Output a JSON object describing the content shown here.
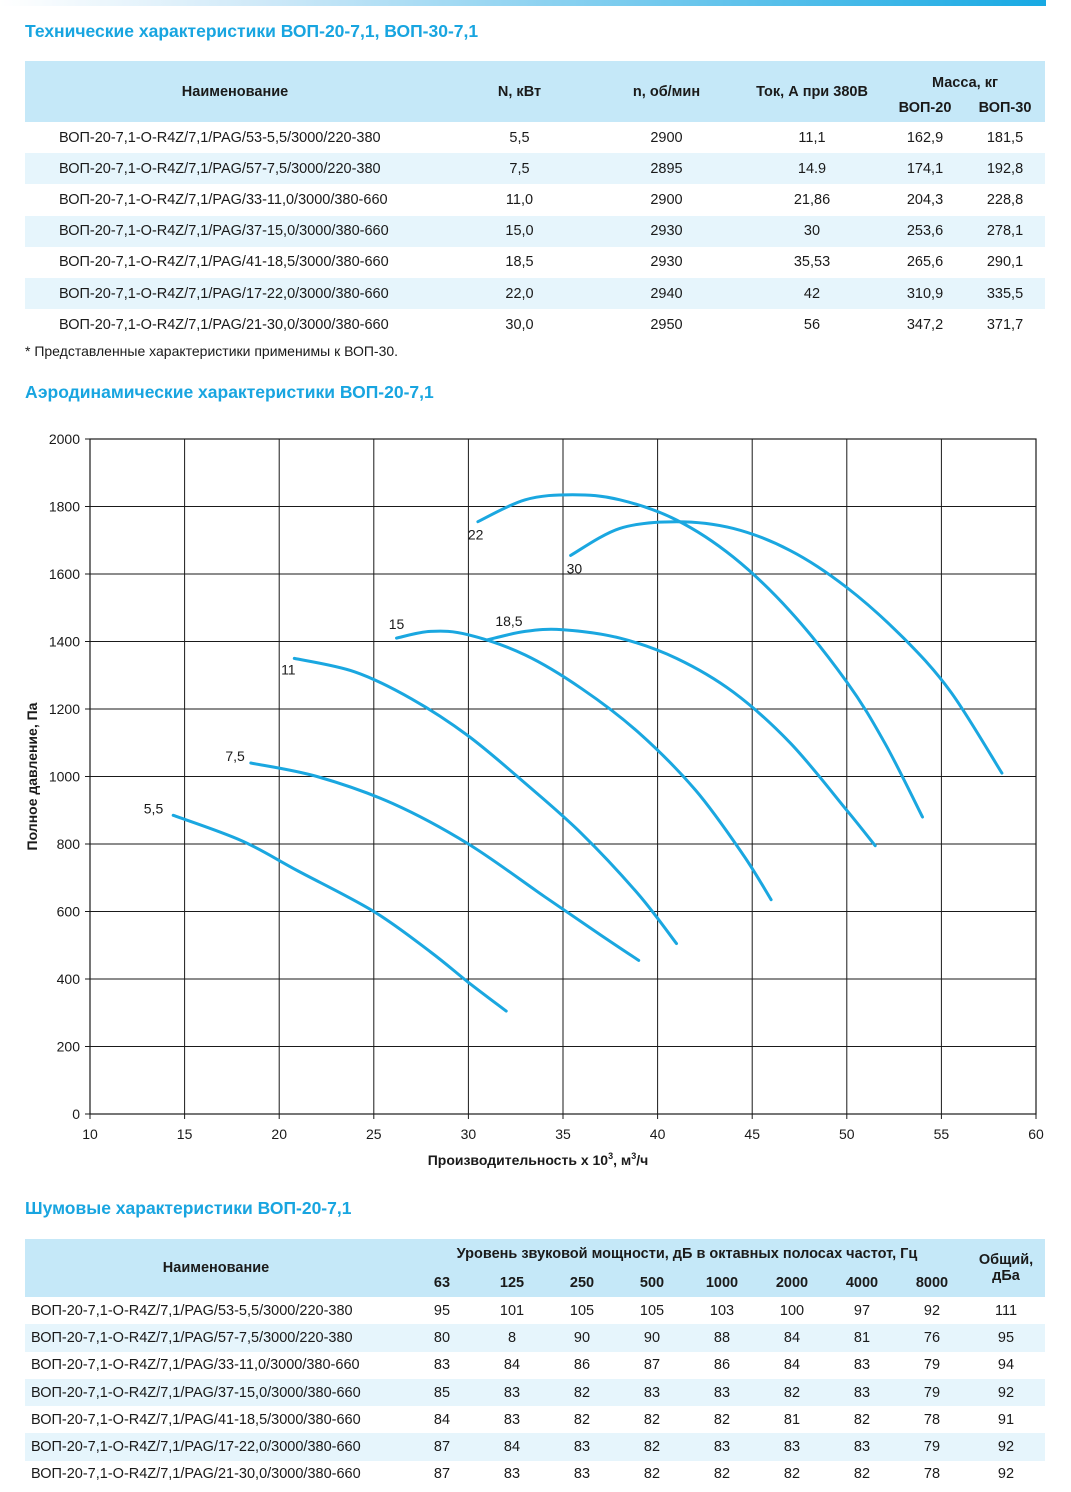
{
  "tech": {
    "title": "Технические характеристики ВОП-20-7,1, ВОП-30-7,1",
    "headers": {
      "name": "Наименование",
      "power": "N, кВт",
      "speed": "n, об/мин",
      "current": "Ток, А при 380В",
      "mass": "Масса, кг",
      "mass20": "ВОП-20",
      "mass30": "ВОП-30"
    },
    "rows": [
      {
        "name": "ВОП-20-7,1-O-R4Z/7,1/PAG/53-5,5/3000/220-380",
        "power": "5,5",
        "speed": "2900",
        "current": "11,1",
        "mass20": "162,9",
        "mass30": "181,5"
      },
      {
        "name": "ВОП-20-7,1-O-R4Z/7,1/PAG/57-7,5/3000/220-380",
        "power": "7,5",
        "speed": "2895",
        "current": "14.9",
        "mass20": "174,1",
        "mass30": "192,8"
      },
      {
        "name": "ВОП-20-7,1-O-R4Z/7,1/PAG/33-11,0/3000/380-660",
        "power": "11,0",
        "speed": "2900",
        "current": "21,86",
        "mass20": "204,3",
        "mass30": "228,8"
      },
      {
        "name": "ВОП-20-7,1-O-R4Z/7,1/PAG/37-15,0/3000/380-660",
        "power": "15,0",
        "speed": "2930",
        "current": "30",
        "mass20": "253,6",
        "mass30": "278,1"
      },
      {
        "name": "ВОП-20-7,1-O-R4Z/7,1/PAG/41-18,5/3000/380-660",
        "power": "18,5",
        "speed": "2930",
        "current": "35,53",
        "mass20": "265,6",
        "mass30": "290,1"
      },
      {
        "name": "ВОП-20-7,1-O-R4Z/7,1/PAG/17-22,0/3000/380-660",
        "power": "22,0",
        "speed": "2940",
        "current": "42",
        "mass20": "310,9",
        "mass30": "335,5"
      },
      {
        "name": "ВОП-20-7,1-O-R4Z/7,1/PAG/21-30,0/3000/380-660",
        "power": "30,0",
        "speed": "2950",
        "current": "56",
        "mass20": "347,2",
        "mass30": "371,7"
      }
    ],
    "note": "* Представленные характеристики применимы к ВОП-30."
  },
  "aero": {
    "title": "Аэродинамические характеристики ВОП-20-7,1"
  },
  "chart_data": {
    "type": "line",
    "title": "",
    "xlabel": "Производительность x 10",
    "xlabel_sup": "3",
    "xlabel_unit": ", м",
    "xlabel_unit_sup": "3",
    "xlabel_tail": "/ч",
    "ylabel": "Полное давление, Па",
    "xlim": [
      10,
      60
    ],
    "ylim": [
      0,
      2000
    ],
    "xticks": [
      "10",
      "15",
      "20",
      "25",
      "30",
      "35",
      "40",
      "45",
      "50",
      "55",
      "60"
    ],
    "yticks": [
      "0",
      "200",
      "400",
      "600",
      "800",
      "1000",
      "1200",
      "1400",
      "1600",
      "1800",
      "2000"
    ],
    "grid": true,
    "line_color": "#1aa7e0",
    "series": [
      {
        "name": "5,5",
        "points": [
          [
            14.4,
            885
          ],
          [
            18,
            810
          ],
          [
            21,
            720
          ],
          [
            25,
            600
          ],
          [
            28,
            480
          ],
          [
            30,
            390
          ],
          [
            32,
            305
          ]
        ]
      },
      {
        "name": "7,5",
        "points": [
          [
            18.5,
            1040
          ],
          [
            22,
            1000
          ],
          [
            26,
            920
          ],
          [
            30,
            800
          ],
          [
            34,
            645
          ],
          [
            37,
            530
          ],
          [
            39,
            455
          ]
        ]
      },
      {
        "name": "11",
        "points": [
          [
            20.8,
            1350
          ],
          [
            24,
            1310
          ],
          [
            27,
            1230
          ],
          [
            30,
            1120
          ],
          [
            33,
            980
          ],
          [
            36,
            830
          ],
          [
            39,
            650
          ],
          [
            41,
            505
          ]
        ]
      },
      {
        "name": "15",
        "points": [
          [
            26.2,
            1410
          ],
          [
            28,
            1430
          ],
          [
            30,
            1420
          ],
          [
            33,
            1360
          ],
          [
            36,
            1260
          ],
          [
            39,
            1130
          ],
          [
            42,
            960
          ],
          [
            44.5,
            770
          ],
          [
            46,
            635
          ]
        ]
      },
      {
        "name": "18,5",
        "points": [
          [
            31,
            1405
          ],
          [
            33,
            1430
          ],
          [
            35,
            1435
          ],
          [
            38,
            1410
          ],
          [
            41,
            1350
          ],
          [
            44,
            1250
          ],
          [
            47,
            1100
          ],
          [
            50,
            900
          ],
          [
            51.5,
            795
          ]
        ]
      },
      {
        "name": "22",
        "points": [
          [
            30.5,
            1755
          ],
          [
            33,
            1820
          ],
          [
            35.5,
            1835
          ],
          [
            38,
            1820
          ],
          [
            41,
            1760
          ],
          [
            44,
            1650
          ],
          [
            47,
            1490
          ],
          [
            50,
            1280
          ],
          [
            52,
            1100
          ],
          [
            54,
            880
          ]
        ]
      },
      {
        "name": "30",
        "points": [
          [
            35.4,
            1655
          ],
          [
            38,
            1735
          ],
          [
            41,
            1755
          ],
          [
            44,
            1735
          ],
          [
            47,
            1670
          ],
          [
            50,
            1560
          ],
          [
            53,
            1410
          ],
          [
            55.5,
            1250
          ],
          [
            58.2,
            1010
          ]
        ]
      }
    ]
  },
  "noise": {
    "title": "Шумовые характеристики ВОП-20-7,1",
    "headers": {
      "name": "Наименование",
      "band_group": "Уровень звуковой мощности, дБ в октавных полосах частот, Гц",
      "total_line1": "Общий,",
      "total_line2": "дБа",
      "bands": [
        "63",
        "125",
        "250",
        "500",
        "1000",
        "2000",
        "4000",
        "8000"
      ]
    },
    "rows": [
      {
        "name": "ВОП-20-7,1-O-R4Z/7,1/PAG/53-5,5/3000/220-380",
        "values": [
          "95",
          "101",
          "105",
          "105",
          "103",
          "100",
          "97",
          "92"
        ],
        "total": "111"
      },
      {
        "name": "ВОП-20-7,1-O-R4Z/7,1/PAG/57-7,5/3000/220-380",
        "values": [
          "80",
          "8",
          "90",
          "90",
          "88",
          "84",
          "81",
          "76"
        ],
        "total": "95"
      },
      {
        "name": "ВОП-20-7,1-O-R4Z/7,1/PAG/33-11,0/3000/380-660",
        "values": [
          "83",
          "84",
          "86",
          "87",
          "86",
          "84",
          "83",
          "79"
        ],
        "total": "94"
      },
      {
        "name": "ВОП-20-7,1-O-R4Z/7,1/PAG/37-15,0/3000/380-660",
        "values": [
          "85",
          "83",
          "82",
          "83",
          "83",
          "82",
          "83",
          "79"
        ],
        "total": "92"
      },
      {
        "name": "ВОП-20-7,1-O-R4Z/7,1/PAG/41-18,5/3000/380-660",
        "values": [
          "84",
          "83",
          "82",
          "82",
          "82",
          "81",
          "82",
          "78"
        ],
        "total": "91"
      },
      {
        "name": "ВОП-20-7,1-O-R4Z/7,1/PAG/17-22,0/3000/380-660",
        "values": [
          "87",
          "84",
          "83",
          "82",
          "83",
          "83",
          "83",
          "79"
        ],
        "total": "92"
      },
      {
        "name": "ВОП-20-7,1-O-R4Z/7,1/PAG/21-30,0/3000/380-660",
        "values": [
          "87",
          "83",
          "83",
          "82",
          "82",
          "82",
          "82",
          "78"
        ],
        "total": "92"
      }
    ]
  }
}
